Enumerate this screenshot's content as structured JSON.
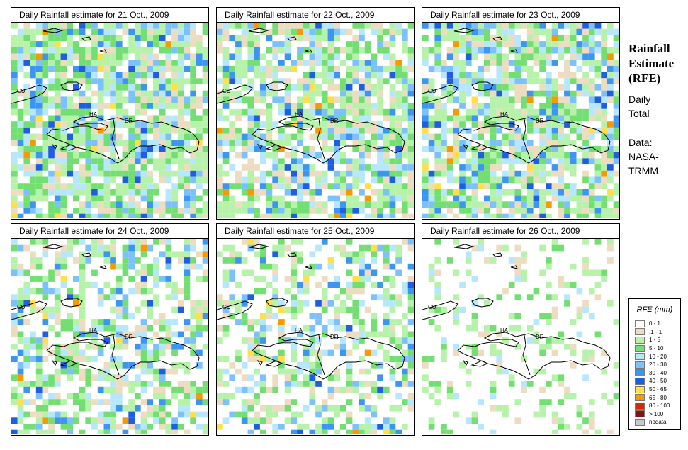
{
  "panels": [
    {
      "title": "Daily Rainfall estimate for  21 Oct., 2009",
      "intensity": 0.85,
      "seed": 1
    },
    {
      "title": "Daily Rainfall estimate for  22 Oct., 2009",
      "intensity": 0.75,
      "seed": 2
    },
    {
      "title": "Daily Rainfall estimate for  23 Oct., 2009",
      "intensity": 0.8,
      "seed": 3
    },
    {
      "title": "Daily Rainfall estimate for  24 Oct., 2009",
      "intensity": 0.55,
      "seed": 4
    },
    {
      "title": "Daily Rainfall estimate for  25 Oct., 2009",
      "intensity": 0.5,
      "seed": 5
    },
    {
      "title": "Daily Rainfall estimate for  26 Oct., 2009",
      "intensity": 0.2,
      "seed": 6
    }
  ],
  "map_labels": {
    "cu": "CU",
    "ha": "HA",
    "dr": "DR"
  },
  "sidebar": {
    "title_line1": "Rainfall",
    "title_line2": "Estimate",
    "title_line3": "(RFE)",
    "subtitle_line1": "Daily",
    "subtitle_line2": "Total",
    "source_line1": "Data:",
    "source_line2": "NASA-",
    "source_line3": "TRMM"
  },
  "legend": {
    "title": "RFE (mm)",
    "items": [
      {
        "label": "0 - 1",
        "color": "#ffffff"
      },
      {
        "label": ".1 - 1",
        "color": "#eddcbf"
      },
      {
        "label": "1 - 5",
        "color": "#b6f2a9"
      },
      {
        "label": "5 - 10",
        "color": "#73df73"
      },
      {
        "label": "10 - 20",
        "color": "#b7e6ff"
      },
      {
        "label": "20 - 30",
        "color": "#7cc1fb"
      },
      {
        "label": "30 - 40",
        "color": "#3c95f0"
      },
      {
        "label": "40 - 50",
        "color": "#1f5de1"
      },
      {
        "label": "50 - 65",
        "color": "#ffe04a"
      },
      {
        "label": "65 - 80",
        "color": "#f59a00"
      },
      {
        "label": "80 - 100",
        "color": "#d42a0a"
      },
      {
        "label": "> 100",
        "color": "#8c1010"
      },
      {
        "label": "nodata",
        "color": "#c8c8c8"
      }
    ]
  }
}
